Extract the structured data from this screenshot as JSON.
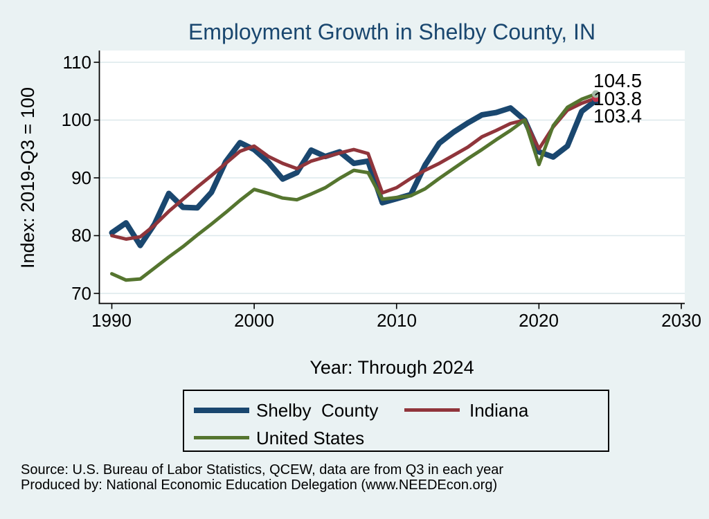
{
  "title": "Employment Growth in Shelby County, IN",
  "axes": {
    "y_title": "Index: 2019-Q3 = 100",
    "x_title": "Year: Through 2024",
    "y_tick_labels": [
      "110",
      "100",
      "90",
      "80",
      "70"
    ],
    "x_tick_labels": [
      "1990",
      "2000",
      "2010",
      "2020",
      "2030"
    ]
  },
  "end_labels": [
    "104.5",
    "103.8",
    "103.4"
  ],
  "legend": {
    "items": [
      {
        "label": "Shelby  County",
        "color": "#1a476f"
      },
      {
        "label": "Indiana",
        "color": "#90353b"
      },
      {
        "label": "United States",
        "color": "#55752f"
      }
    ]
  },
  "source": {
    "line1": "Source: U.S. Bureau of Labor Statistics, QCEW, data are from Q3 in each year",
    "line2": "Produced by: National Economic Education Delegation (www.NEEDEcon.org)"
  },
  "colors": {
    "background": "#eaf2f3",
    "plot_bg": "#ffffff",
    "grid": "#dce8eb",
    "axis": "#000000",
    "title_text": "#1a476f"
  },
  "chart_data": {
    "type": "line",
    "title": "Employment Growth in Shelby County, IN",
    "xlabel": "Year: Through 2024",
    "ylabel": "Index: 2019-Q3 = 100",
    "xlim": [
      1989,
      2030.3
    ],
    "ylim": [
      68,
      112
    ],
    "x_ticks": [
      1990,
      2000,
      2010,
      2020,
      2030
    ],
    "y_ticks": [
      70,
      80,
      90,
      100,
      110
    ],
    "grid": "horizontal",
    "legend_position": "bottom",
    "x": [
      1990,
      1991,
      1992,
      1993,
      1994,
      1995,
      1996,
      1997,
      1998,
      1999,
      2000,
      2001,
      2002,
      2003,
      2004,
      2005,
      2006,
      2007,
      2008,
      2009,
      2010,
      2011,
      2012,
      2013,
      2014,
      2015,
      2016,
      2017,
      2018,
      2019,
      2020,
      2021,
      2022,
      2023,
      2024
    ],
    "series": [
      {
        "name": "Shelby County",
        "color": "#1a476f",
        "width": 8,
        "marker_color": "#1a476f",
        "end_value": 103.4,
        "values": [
          80.5,
          82.2,
          78.3,
          82.0,
          87.3,
          84.9,
          84.8,
          87.5,
          92.8,
          96.1,
          94.9,
          92.7,
          89.8,
          90.9,
          94.8,
          93.7,
          94.5,
          92.5,
          92.9,
          85.7,
          86.4,
          87.1,
          92.2,
          96.0,
          97.9,
          99.5,
          100.9,
          101.3,
          102.1,
          100.0,
          94.5,
          93.6,
          95.5,
          101.5,
          103.4
        ]
      },
      {
        "name": "Indiana",
        "color": "#90353b",
        "width": 5,
        "marker_color": "#c1334a",
        "end_value": 103.8,
        "values": [
          80.0,
          79.4,
          79.8,
          81.8,
          84.2,
          86.3,
          88.4,
          90.4,
          92.5,
          94.6,
          95.5,
          93.7,
          92.5,
          91.6,
          92.9,
          93.6,
          94.3,
          94.9,
          94.2,
          87.4,
          88.3,
          89.9,
          91.3,
          92.5,
          93.9,
          95.3,
          97.1,
          98.2,
          99.4,
          100.0,
          95.0,
          98.8,
          101.7,
          102.9,
          103.8
        ]
      },
      {
        "name": "United States",
        "color": "#55752f",
        "width": 5,
        "marker_color": "#a2b9a4",
        "end_value": 104.5,
        "values": [
          73.4,
          72.3,
          72.5,
          74.4,
          76.3,
          78.1,
          80.1,
          82.0,
          84.0,
          86.1,
          88.0,
          87.3,
          86.5,
          86.2,
          87.2,
          88.3,
          89.9,
          91.3,
          90.9,
          86.3,
          86.6,
          86.9,
          88.1,
          89.9,
          91.6,
          93.3,
          94.9,
          96.6,
          98.2,
          100.0,
          92.3,
          99.0,
          102.2,
          103.6,
          104.5
        ]
      }
    ]
  }
}
